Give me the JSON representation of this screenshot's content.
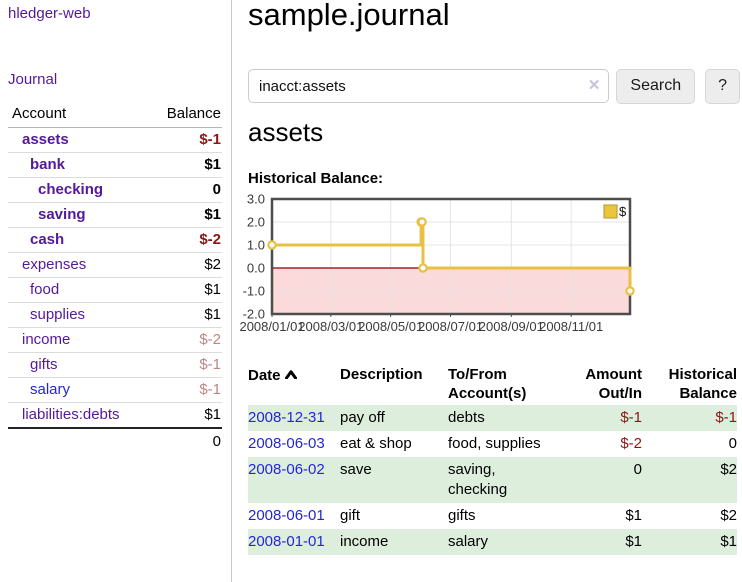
{
  "app": {
    "title": "hledger-web"
  },
  "sidebar": {
    "journal_label": "Journal",
    "accounts": {
      "headers": [
        "Account",
        "Balance"
      ],
      "rows": [
        {
          "name": "assets",
          "balance": "$-1",
          "depth": 1,
          "bold": true,
          "neg": "strong"
        },
        {
          "name": "bank",
          "balance": "$1",
          "depth": 2,
          "bold": true,
          "neg": "none"
        },
        {
          "name": "checking",
          "balance": "0",
          "depth": 3,
          "bold": true,
          "neg": "none"
        },
        {
          "name": "saving",
          "balance": "$1",
          "depth": 3,
          "bold": true,
          "neg": "none"
        },
        {
          "name": "cash",
          "balance": "$-2",
          "depth": 2,
          "bold": true,
          "neg": "strong"
        },
        {
          "name": "expenses",
          "balance": "$2",
          "depth": 1,
          "bold": false,
          "neg": "none"
        },
        {
          "name": "food",
          "balance": "$1",
          "depth": 2,
          "bold": false,
          "neg": "none"
        },
        {
          "name": "supplies",
          "balance": "$1",
          "depth": 2,
          "bold": false,
          "neg": "none"
        },
        {
          "name": "income",
          "balance": "$-2",
          "depth": 1,
          "bold": false,
          "neg": "muted"
        },
        {
          "name": "gifts",
          "balance": "$-1",
          "depth": 2,
          "bold": false,
          "neg": "muted"
        },
        {
          "name": "salary",
          "balance": "$-1",
          "depth": 2,
          "bold": false,
          "neg": "muted",
          "unvisited": true
        },
        {
          "name": "liabilities:debts",
          "balance": "$1",
          "depth": 1,
          "bold": false,
          "neg": "none",
          "last": true
        }
      ],
      "total": "0"
    }
  },
  "main": {
    "title": "sample.journal",
    "search": {
      "value": "inacct:assets",
      "clear_icon": "✕",
      "button_label": "Search",
      "help_label": "?"
    },
    "account_heading": "assets",
    "register": {
      "headers": {
        "date": "Date",
        "description": "Description",
        "to_from": "To/From Account(s)",
        "amount": "Amount Out/In",
        "balance": "Historical Balance"
      },
      "rows": [
        {
          "date": "2008-12-31",
          "description": "pay off",
          "to_from": "debts",
          "amount": "$-1",
          "balance": "$-1",
          "amount_neg": true,
          "balance_neg": true
        },
        {
          "date": "2008-06-03",
          "description": "eat & shop",
          "to_from": "food, supplies",
          "amount": "$-2",
          "balance": "0",
          "amount_neg": true,
          "balance_neg": false
        },
        {
          "date": "2008-06-02",
          "description": "save",
          "to_from": "saving, checking",
          "amount": "0",
          "balance": "$2",
          "amount_neg": false,
          "balance_neg": false
        },
        {
          "date": "2008-06-01",
          "description": "gift",
          "to_from": "gifts",
          "amount": "$1",
          "balance": "$2",
          "amount_neg": false,
          "balance_neg": false
        },
        {
          "date": "2008-01-01",
          "description": "income",
          "to_from": "salary",
          "amount": "$1",
          "balance": "$1",
          "amount_neg": false,
          "balance_neg": false
        }
      ]
    }
  },
  "chart_data": {
    "type": "line",
    "title": "Historical Balance:",
    "steps": true,
    "series": [
      {
        "name": "$",
        "color": "#e9c044",
        "points": [
          [
            "2008-01-01",
            1
          ],
          [
            "2008-06-01",
            2
          ],
          [
            "2008-06-02",
            2
          ],
          [
            "2008-06-03",
            0
          ],
          [
            "2008-12-31",
            -1
          ]
        ]
      }
    ],
    "xlim": [
      "2008-01-01",
      "2008-12-31"
    ],
    "ylim": [
      -2,
      3
    ],
    "yticks": [
      "3.0",
      "2.0",
      "1.0",
      "0.0",
      "-1.0",
      "-2.0"
    ],
    "xticks": [
      "2008/01/01",
      "2008/03/01",
      "2008/05/01",
      "2008/07/01",
      "2008/09/01",
      "2008/11/01"
    ],
    "legend": {
      "label": "$",
      "position": "top-right",
      "swatch_fill": "#eac63f",
      "swatch_border": "#b6952e"
    },
    "grid": true,
    "colors": {
      "plot_border": "#4d4d4d",
      "gridline": "#e4e4e4",
      "negative_fill": "#fadada",
      "zero_line": "#8b0000",
      "tick_text": "#3a3a3a",
      "marker_fill": "#ffffff"
    }
  }
}
